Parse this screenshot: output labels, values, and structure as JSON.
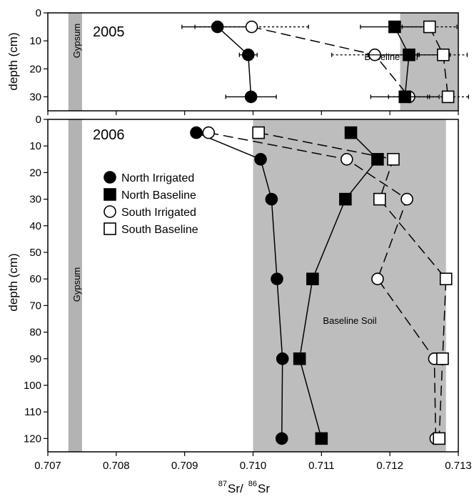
{
  "chart_data": [
    {
      "id": "panel-2005",
      "type": "line",
      "panel_label": "2005",
      "ylabel": "depth (cm)",
      "xlim": [
        0.707,
        0.713
      ],
      "ylim": [
        35,
        0
      ],
      "y_ticks": [
        0,
        10,
        20,
        30
      ],
      "x_ticks": [
        0.707,
        0.708,
        0.709,
        0.71,
        0.711,
        0.712,
        0.713
      ],
      "x_tick_labels": [
        "",
        "",
        "",
        "",
        "",
        "",
        ""
      ],
      "bands": [
        {
          "label": "Gypsum",
          "x": [
            0.7073,
            0.7075
          ],
          "color": "#b3b3b3"
        },
        {
          "label": "Baseline Soil",
          "x": [
            0.71215,
            0.713
          ],
          "color": "#bdbdbd"
        }
      ],
      "series": [
        {
          "name": "North Irrigated",
          "marker": "circle",
          "fill": "#000000",
          "line": "solid",
          "points": [
            {
              "x": 0.70948,
              "y": 5,
              "xerr": 0.00052
            },
            {
              "x": 0.70993,
              "y": 15,
              "xerr": 0.00013
            },
            {
              "x": 0.70997,
              "y": 30,
              "xerr": 0.00037
            }
          ]
        },
        {
          "name": "South Irrigated",
          "marker": "circle",
          "fill": "#ffffff",
          "line": "dashed",
          "points": [
            {
              "x": 0.70998,
              "y": 5,
              "xerr": 0.00083
            },
            {
              "x": 0.71178,
              "y": 15,
              "xerr": 0.00063
            },
            {
              "x": 0.71228,
              "y": 30,
              "xerr": 0.0003
            }
          ]
        },
        {
          "name": "North Baseline",
          "marker": "square",
          "fill": "#000000",
          "line": "solid",
          "points": [
            {
              "x": 0.71207,
              "y": 5,
              "xerr": 0.0005
            },
            {
              "x": 0.71228,
              "y": 15,
              "xerr": 0.0006
            },
            {
              "x": 0.71222,
              "y": 30,
              "xerr": 0.0005
            }
          ]
        },
        {
          "name": "South Baseline",
          "marker": "square",
          "fill": "#ffffff",
          "line": "dashed",
          "points": [
            {
              "x": 0.71258,
              "y": 5,
              "xerr": 0.0004
            },
            {
              "x": 0.71278,
              "y": 15,
              "xerr": 0.00035
            },
            {
              "x": 0.71285,
              "y": 30,
              "xerr": 0.0003
            }
          ]
        }
      ]
    },
    {
      "id": "panel-2006",
      "type": "line",
      "panel_label": "2006",
      "ylabel": "depth (cm)",
      "xlabel_num1": "87",
      "xlabel_el1": "Sr/",
      "xlabel_num2": "86",
      "xlabel_el2": "Sr",
      "xlim": [
        0.707,
        0.713
      ],
      "ylim": [
        125,
        0
      ],
      "y_ticks": [
        0,
        10,
        20,
        30,
        40,
        50,
        60,
        70,
        80,
        90,
        100,
        110,
        120
      ],
      "x_ticks": [
        0.707,
        0.708,
        0.709,
        0.71,
        0.711,
        0.712,
        0.713
      ],
      "x_tick_labels": [
        "0.707",
        "0.708",
        "0.709",
        "0.710",
        "0.711",
        "0.712",
        "0.713"
      ],
      "bands": [
        {
          "label": "Gypsum",
          "x": [
            0.7073,
            0.7075
          ],
          "color": "#b3b3b3"
        },
        {
          "label": "Baseline Soil",
          "x": [
            0.71,
            0.71282
          ],
          "color": "#bdbdbd"
        }
      ],
      "series": [
        {
          "name": "North Irrigated",
          "marker": "circle",
          "fill": "#000000",
          "line": "solid",
          "points": [
            {
              "x": 0.70917,
              "y": 5
            },
            {
              "x": 0.71011,
              "y": 15
            },
            {
              "x": 0.71027,
              "y": 30
            },
            {
              "x": 0.71035,
              "y": 60
            },
            {
              "x": 0.71043,
              "y": 90
            },
            {
              "x": 0.71042,
              "y": 120
            }
          ]
        },
        {
          "name": "North Baseline",
          "marker": "square",
          "fill": "#000000",
          "line": "solid",
          "points": [
            {
              "x": 0.71143,
              "y": 5
            },
            {
              "x": 0.71182,
              "y": 15
            },
            {
              "x": 0.71135,
              "y": 30
            },
            {
              "x": 0.71087,
              "y": 60
            },
            {
              "x": 0.71068,
              "y": 90
            },
            {
              "x": 0.711,
              "y": 120
            }
          ]
        },
        {
          "name": "South Irrigated",
          "marker": "circle",
          "fill": "#ffffff",
          "line": "dashed",
          "points": [
            {
              "x": 0.70935,
              "y": 5
            },
            {
              "x": 0.71137,
              "y": 15
            },
            {
              "x": 0.71225,
              "y": 30
            },
            {
              "x": 0.71182,
              "y": 60
            },
            {
              "x": 0.71265,
              "y": 90
            },
            {
              "x": 0.71267,
              "y": 120
            }
          ]
        },
        {
          "name": "South Baseline",
          "marker": "square",
          "fill": "#ffffff",
          "line": "dashed",
          "points": [
            {
              "x": 0.71008,
              "y": 5
            },
            {
              "x": 0.71205,
              "y": 15
            },
            {
              "x": 0.71185,
              "y": 30
            },
            {
              "x": 0.71282,
              "y": 60
            },
            {
              "x": 0.71277,
              "y": 90
            },
            {
              "x": 0.71272,
              "y": 120
            }
          ]
        }
      ],
      "legend": {
        "placement": "upper-left",
        "entries": [
          {
            "label": "North Irrigated",
            "marker": "circle",
            "fill": "#000000"
          },
          {
            "label": "North Baseline",
            "marker": "square",
            "fill": "#000000"
          },
          {
            "label": "South Irrigated",
            "marker": "circle",
            "fill": "#ffffff"
          },
          {
            "label": "South Baseline",
            "marker": "square",
            "fill": "#ffffff"
          }
        ]
      }
    }
  ]
}
